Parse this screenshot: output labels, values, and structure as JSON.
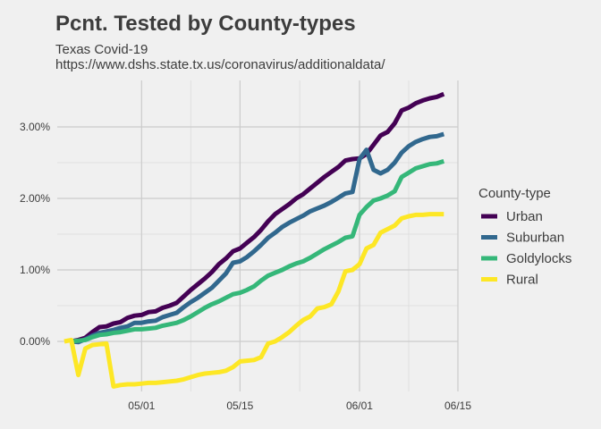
{
  "chart_data": {
    "type": "line",
    "title": "Pcnt. Tested by County-types",
    "subtitle_lines": [
      "Texas Covid-19",
      "https://www.dshs.state.tx.us/coronavirus/additionaldata/"
    ],
    "xlabel": "",
    "ylabel": "",
    "x_ticks": [
      {
        "label": "05/01",
        "date": "2020-05-01"
      },
      {
        "label": "05/15",
        "date": "2020-05-15"
      },
      {
        "label": "06/01",
        "date": "2020-06-01"
      },
      {
        "label": "06/15",
        "date": "2020-06-15"
      }
    ],
    "y_ticks": [
      {
        "label": "0.00%",
        "value": 0
      },
      {
        "label": "1.00%",
        "value": 1
      },
      {
        "label": "2.00%",
        "value": 2
      },
      {
        "label": "3.00%",
        "value": 3
      }
    ],
    "xlim": [
      "2020-04-19",
      "2020-06-15"
    ],
    "ylim": [
      -0.7,
      3.65
    ],
    "grid": true,
    "legend": {
      "title": "County-type",
      "position": "right"
    },
    "series": [
      {
        "name": "Urban",
        "color": "#440154",
        "points": [
          [
            "2020-04-21",
            0.0
          ],
          [
            "2020-04-22",
            0.02
          ],
          [
            "2020-04-23",
            0.05
          ],
          [
            "2020-04-24",
            0.13
          ],
          [
            "2020-04-25",
            0.2
          ],
          [
            "2020-04-26",
            0.21
          ],
          [
            "2020-04-27",
            0.25
          ],
          [
            "2020-04-28",
            0.27
          ],
          [
            "2020-04-29",
            0.33
          ],
          [
            "2020-04-30",
            0.36
          ],
          [
            "2020-05-01",
            0.37
          ],
          [
            "2020-05-02",
            0.41
          ],
          [
            "2020-05-03",
            0.42
          ],
          [
            "2020-05-04",
            0.47
          ],
          [
            "2020-05-05",
            0.5
          ],
          [
            "2020-05-06",
            0.54
          ],
          [
            "2020-05-07",
            0.63
          ],
          [
            "2020-05-08",
            0.72
          ],
          [
            "2020-05-09",
            0.8
          ],
          [
            "2020-05-10",
            0.88
          ],
          [
            "2020-05-11",
            0.97
          ],
          [
            "2020-05-12",
            1.08
          ],
          [
            "2020-05-13",
            1.16
          ],
          [
            "2020-05-14",
            1.26
          ],
          [
            "2020-05-15",
            1.3
          ],
          [
            "2020-05-16",
            1.38
          ],
          [
            "2020-05-17",
            1.46
          ],
          [
            "2020-05-18",
            1.56
          ],
          [
            "2020-05-19",
            1.68
          ],
          [
            "2020-05-20",
            1.78
          ],
          [
            "2020-05-21",
            1.85
          ],
          [
            "2020-05-22",
            1.92
          ],
          [
            "2020-05-23",
            2.0
          ],
          [
            "2020-05-24",
            2.06
          ],
          [
            "2020-05-25",
            2.14
          ],
          [
            "2020-05-26",
            2.22
          ],
          [
            "2020-05-27",
            2.3
          ],
          [
            "2020-05-28",
            2.37
          ],
          [
            "2020-05-29",
            2.44
          ],
          [
            "2020-05-30",
            2.53
          ],
          [
            "2020-05-31",
            2.55
          ],
          [
            "2020-06-01",
            2.56
          ],
          [
            "2020-06-02",
            2.62
          ],
          [
            "2020-06-03",
            2.75
          ],
          [
            "2020-06-04",
            2.88
          ],
          [
            "2020-06-05",
            2.93
          ],
          [
            "2020-06-06",
            3.05
          ],
          [
            "2020-06-07",
            3.23
          ],
          [
            "2020-06-08",
            3.27
          ],
          [
            "2020-06-09",
            3.33
          ],
          [
            "2020-06-10",
            3.37
          ],
          [
            "2020-06-11",
            3.4
          ],
          [
            "2020-06-12",
            3.42
          ],
          [
            "2020-06-13",
            3.46
          ]
        ]
      },
      {
        "name": "Suburban",
        "color": "#31688e",
        "points": [
          [
            "2020-04-21",
            0.0
          ],
          [
            "2020-04-22",
            -0.01
          ],
          [
            "2020-04-23",
            0.03
          ],
          [
            "2020-04-24",
            0.08
          ],
          [
            "2020-04-25",
            0.12
          ],
          [
            "2020-04-26",
            0.14
          ],
          [
            "2020-04-27",
            0.16
          ],
          [
            "2020-04-28",
            0.19
          ],
          [
            "2020-04-29",
            0.21
          ],
          [
            "2020-04-30",
            0.26
          ],
          [
            "2020-05-01",
            0.26
          ],
          [
            "2020-05-02",
            0.28
          ],
          [
            "2020-05-03",
            0.29
          ],
          [
            "2020-05-04",
            0.34
          ],
          [
            "2020-05-05",
            0.37
          ],
          [
            "2020-05-06",
            0.4
          ],
          [
            "2020-05-07",
            0.48
          ],
          [
            "2020-05-08",
            0.55
          ],
          [
            "2020-05-09",
            0.61
          ],
          [
            "2020-05-10",
            0.68
          ],
          [
            "2020-05-11",
            0.75
          ],
          [
            "2020-05-12",
            0.85
          ],
          [
            "2020-05-13",
            0.95
          ],
          [
            "2020-05-14",
            1.1
          ],
          [
            "2020-05-15",
            1.12
          ],
          [
            "2020-05-16",
            1.18
          ],
          [
            "2020-05-17",
            1.26
          ],
          [
            "2020-05-18",
            1.35
          ],
          [
            "2020-05-19",
            1.45
          ],
          [
            "2020-05-20",
            1.52
          ],
          [
            "2020-05-21",
            1.6
          ],
          [
            "2020-05-22",
            1.66
          ],
          [
            "2020-05-23",
            1.71
          ],
          [
            "2020-05-24",
            1.76
          ],
          [
            "2020-05-25",
            1.82
          ],
          [
            "2020-05-26",
            1.86
          ],
          [
            "2020-05-27",
            1.9
          ],
          [
            "2020-05-28",
            1.95
          ],
          [
            "2020-05-29",
            2.01
          ],
          [
            "2020-05-30",
            2.07
          ],
          [
            "2020-05-31",
            2.09
          ],
          [
            "2020-06-01",
            2.55
          ],
          [
            "2020-06-02",
            2.68
          ],
          [
            "2020-06-03",
            2.4
          ],
          [
            "2020-06-04",
            2.35
          ],
          [
            "2020-06-05",
            2.4
          ],
          [
            "2020-06-06",
            2.5
          ],
          [
            "2020-06-07",
            2.64
          ],
          [
            "2020-06-08",
            2.73
          ],
          [
            "2020-06-09",
            2.79
          ],
          [
            "2020-06-10",
            2.83
          ],
          [
            "2020-06-11",
            2.86
          ],
          [
            "2020-06-12",
            2.87
          ],
          [
            "2020-06-13",
            2.9
          ]
        ]
      },
      {
        "name": "Goldylocks",
        "color": "#35b779",
        "points": [
          [
            "2020-04-21",
            0.0
          ],
          [
            "2020-04-22",
            0.01
          ],
          [
            "2020-04-23",
            0.02
          ],
          [
            "2020-04-24",
            0.06
          ],
          [
            "2020-04-25",
            0.09
          ],
          [
            "2020-04-26",
            0.1
          ],
          [
            "2020-04-27",
            0.12
          ],
          [
            "2020-04-28",
            0.13
          ],
          [
            "2020-04-29",
            0.15
          ],
          [
            "2020-04-30",
            0.17
          ],
          [
            "2020-05-01",
            0.17
          ],
          [
            "2020-05-02",
            0.18
          ],
          [
            "2020-05-03",
            0.19
          ],
          [
            "2020-05-04",
            0.22
          ],
          [
            "2020-05-05",
            0.24
          ],
          [
            "2020-05-06",
            0.26
          ],
          [
            "2020-05-07",
            0.3
          ],
          [
            "2020-05-08",
            0.35
          ],
          [
            "2020-05-09",
            0.41
          ],
          [
            "2020-05-10",
            0.47
          ],
          [
            "2020-05-11",
            0.52
          ],
          [
            "2020-05-12",
            0.56
          ],
          [
            "2020-05-13",
            0.61
          ],
          [
            "2020-05-14",
            0.66
          ],
          [
            "2020-05-15",
            0.68
          ],
          [
            "2020-05-16",
            0.72
          ],
          [
            "2020-05-17",
            0.77
          ],
          [
            "2020-05-18",
            0.85
          ],
          [
            "2020-05-19",
            0.92
          ],
          [
            "2020-05-20",
            0.96
          ],
          [
            "2020-05-21",
            1.0
          ],
          [
            "2020-05-22",
            1.05
          ],
          [
            "2020-05-23",
            1.09
          ],
          [
            "2020-05-24",
            1.12
          ],
          [
            "2020-05-25",
            1.17
          ],
          [
            "2020-05-26",
            1.23
          ],
          [
            "2020-05-27",
            1.29
          ],
          [
            "2020-05-28",
            1.34
          ],
          [
            "2020-05-29",
            1.39
          ],
          [
            "2020-05-30",
            1.45
          ],
          [
            "2020-05-31",
            1.47
          ],
          [
            "2020-06-01",
            1.77
          ],
          [
            "2020-06-02",
            1.88
          ],
          [
            "2020-06-03",
            1.97
          ],
          [
            "2020-06-04",
            2.0
          ],
          [
            "2020-06-05",
            2.04
          ],
          [
            "2020-06-06",
            2.1
          ],
          [
            "2020-06-07",
            2.3
          ],
          [
            "2020-06-08",
            2.36
          ],
          [
            "2020-06-09",
            2.42
          ],
          [
            "2020-06-10",
            2.45
          ],
          [
            "2020-06-11",
            2.48
          ],
          [
            "2020-06-12",
            2.49
          ],
          [
            "2020-06-13",
            2.52
          ]
        ]
      },
      {
        "name": "Rural",
        "color": "#fde725",
        "points": [
          [
            "2020-04-20",
            0.0
          ],
          [
            "2020-04-21",
            0.02
          ],
          [
            "2020-04-22",
            -0.47
          ],
          [
            "2020-04-23",
            -0.1
          ],
          [
            "2020-04-24",
            -0.05
          ],
          [
            "2020-04-25",
            -0.04
          ],
          [
            "2020-04-26",
            -0.03
          ],
          [
            "2020-04-27",
            -0.63
          ],
          [
            "2020-04-28",
            -0.61
          ],
          [
            "2020-04-29",
            -0.6
          ],
          [
            "2020-04-30",
            -0.6
          ],
          [
            "2020-05-01",
            -0.59
          ],
          [
            "2020-05-02",
            -0.58
          ],
          [
            "2020-05-03",
            -0.58
          ],
          [
            "2020-05-04",
            -0.57
          ],
          [
            "2020-05-05",
            -0.56
          ],
          [
            "2020-05-06",
            -0.55
          ],
          [
            "2020-05-07",
            -0.53
          ],
          [
            "2020-05-08",
            -0.5
          ],
          [
            "2020-05-09",
            -0.47
          ],
          [
            "2020-05-10",
            -0.45
          ],
          [
            "2020-05-11",
            -0.44
          ],
          [
            "2020-05-12",
            -0.43
          ],
          [
            "2020-05-13",
            -0.41
          ],
          [
            "2020-05-14",
            -0.36
          ],
          [
            "2020-05-15",
            -0.28
          ],
          [
            "2020-05-16",
            -0.27
          ],
          [
            "2020-05-17",
            -0.26
          ],
          [
            "2020-05-18",
            -0.22
          ],
          [
            "2020-05-19",
            -0.03
          ],
          [
            "2020-05-20",
            0.0
          ],
          [
            "2020-05-21",
            0.06
          ],
          [
            "2020-05-22",
            0.13
          ],
          [
            "2020-05-23",
            0.22
          ],
          [
            "2020-05-24",
            0.3
          ],
          [
            "2020-05-25",
            0.35
          ],
          [
            "2020-05-26",
            0.46
          ],
          [
            "2020-05-27",
            0.48
          ],
          [
            "2020-05-28",
            0.52
          ],
          [
            "2020-05-29",
            0.7
          ],
          [
            "2020-05-30",
            0.98
          ],
          [
            "2020-05-31",
            1.0
          ],
          [
            "2020-06-01",
            1.08
          ],
          [
            "2020-06-02",
            1.3
          ],
          [
            "2020-06-03",
            1.35
          ],
          [
            "2020-06-04",
            1.52
          ],
          [
            "2020-06-05",
            1.57
          ],
          [
            "2020-06-06",
            1.62
          ],
          [
            "2020-06-07",
            1.72
          ],
          [
            "2020-06-08",
            1.75
          ],
          [
            "2020-06-09",
            1.77
          ],
          [
            "2020-06-10",
            1.77
          ],
          [
            "2020-06-11",
            1.78
          ],
          [
            "2020-06-12",
            1.78
          ],
          [
            "2020-06-13",
            1.78
          ]
        ]
      }
    ]
  }
}
